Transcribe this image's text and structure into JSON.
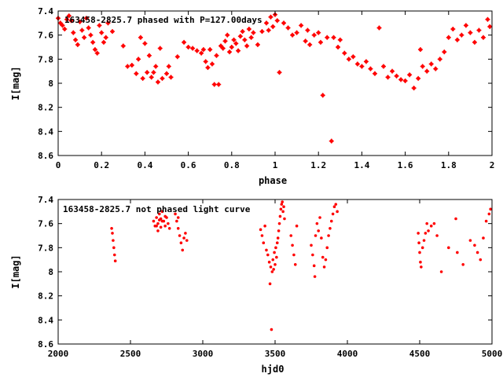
{
  "chart_data": [
    {
      "type": "scatter",
      "title": "163458-2825.7 phased with P=127.00days",
      "xlabel": "phase",
      "ylabel": "I[mag]",
      "xlim": [
        0,
        2
      ],
      "ylim": [
        7.4,
        8.6
      ],
      "y_inverted": true,
      "grid": false,
      "marker_color": "#ff0000",
      "x_ticks": [
        0,
        0.2,
        0.4,
        0.6,
        0.8,
        1,
        1.2,
        1.4,
        1.6,
        1.8,
        2
      ],
      "x_tick_labels": [
        "0",
        "0.2",
        "0.4",
        "0.6",
        "0.8",
        "1",
        "1.2",
        "1.4",
        "1.6",
        "1.8",
        "2"
      ],
      "y_ticks": [
        7.4,
        7.6,
        7.8,
        8,
        8.2,
        8.4,
        8.6
      ],
      "y_tick_labels": [
        "7.4",
        "7.6",
        "7.8",
        "8",
        "8.2",
        "8.4",
        "8.6"
      ],
      "points": [
        [
          0.0,
          7.46
        ],
        [
          0.01,
          7.5
        ],
        [
          0.02,
          7.52
        ],
        [
          0.03,
          7.55
        ],
        [
          0.04,
          7.47
        ],
        [
          0.05,
          7.44
        ],
        [
          0.06,
          7.48
        ],
        [
          0.07,
          7.58
        ],
        [
          0.08,
          7.64
        ],
        [
          0.09,
          7.68
        ],
        [
          0.1,
          7.49
        ],
        [
          0.11,
          7.56
        ],
        [
          0.12,
          7.62
        ],
        [
          0.13,
          7.46
        ],
        [
          0.14,
          7.54
        ],
        [
          0.15,
          7.6
        ],
        [
          0.16,
          7.66
        ],
        [
          0.17,
          7.72
        ],
        [
          0.18,
          7.75
        ],
        [
          0.19,
          7.52
        ],
        [
          0.2,
          7.58
        ],
        [
          0.21,
          7.66
        ],
        [
          0.22,
          7.62
        ],
        [
          0.23,
          7.5
        ],
        [
          0.25,
          7.57
        ],
        [
          0.3,
          7.69
        ],
        [
          0.32,
          7.86
        ],
        [
          0.34,
          7.85
        ],
        [
          0.36,
          7.92
        ],
        [
          0.37,
          7.8
        ],
        [
          0.38,
          7.62
        ],
        [
          0.39,
          7.96
        ],
        [
          0.4,
          7.67
        ],
        [
          0.41,
          7.91
        ],
        [
          0.42,
          7.77
        ],
        [
          0.43,
          7.95
        ],
        [
          0.44,
          7.91
        ],
        [
          0.45,
          7.86
        ],
        [
          0.46,
          7.99
        ],
        [
          0.47,
          7.71
        ],
        [
          0.48,
          7.96
        ],
        [
          0.5,
          7.92
        ],
        [
          0.51,
          7.86
        ],
        [
          0.52,
          7.95
        ],
        [
          0.55,
          7.78
        ],
        [
          0.58,
          7.66
        ],
        [
          0.6,
          7.7
        ],
        [
          0.62,
          7.71
        ],
        [
          0.64,
          7.73
        ],
        [
          0.66,
          7.75
        ],
        [
          0.67,
          7.72
        ],
        [
          0.68,
          7.82
        ],
        [
          0.69,
          7.87
        ],
        [
          0.7,
          7.72
        ],
        [
          0.71,
          7.84
        ],
        [
          0.72,
          8.01
        ],
        [
          0.73,
          7.77
        ],
        [
          0.74,
          8.01
        ],
        [
          0.75,
          7.69
        ],
        [
          0.76,
          7.71
        ],
        [
          0.77,
          7.65
        ],
        [
          0.78,
          7.6
        ],
        [
          0.79,
          7.74
        ],
        [
          0.8,
          7.7
        ],
        [
          0.81,
          7.64
        ],
        [
          0.82,
          7.67
        ],
        [
          0.83,
          7.73
        ],
        [
          0.84,
          7.61
        ],
        [
          0.85,
          7.57
        ],
        [
          0.86,
          7.64
        ],
        [
          0.87,
          7.69
        ],
        [
          0.88,
          7.55
        ],
        [
          0.89,
          7.62
        ],
        [
          0.9,
          7.58
        ],
        [
          0.92,
          7.68
        ],
        [
          0.94,
          7.57
        ],
        [
          0.96,
          7.5
        ],
        [
          0.97,
          7.56
        ],
        [
          0.98,
          7.45
        ],
        [
          0.99,
          7.53
        ],
        [
          1.0,
          7.43
        ],
        [
          1.01,
          7.48
        ],
        [
          1.02,
          7.91
        ],
        [
          1.04,
          7.5
        ],
        [
          1.06,
          7.54
        ],
        [
          1.08,
          7.6
        ],
        [
          1.1,
          7.58
        ],
        [
          1.12,
          7.52
        ],
        [
          1.14,
          7.65
        ],
        [
          1.15,
          7.56
        ],
        [
          1.16,
          7.68
        ],
        [
          1.18,
          7.6
        ],
        [
          1.2,
          7.58
        ],
        [
          1.21,
          7.66
        ],
        [
          1.22,
          8.1
        ],
        [
          1.24,
          7.62
        ],
        [
          1.26,
          8.48
        ],
        [
          1.27,
          7.62
        ],
        [
          1.29,
          7.7
        ],
        [
          1.3,
          7.64
        ],
        [
          1.32,
          7.75
        ],
        [
          1.34,
          7.8
        ],
        [
          1.36,
          7.78
        ],
        [
          1.38,
          7.84
        ],
        [
          1.4,
          7.86
        ],
        [
          1.42,
          7.82
        ],
        [
          1.44,
          7.88
        ],
        [
          1.46,
          7.92
        ],
        [
          1.48,
          7.54
        ],
        [
          1.5,
          7.86
        ],
        [
          1.52,
          7.95
        ],
        [
          1.54,
          7.9
        ],
        [
          1.56,
          7.94
        ],
        [
          1.58,
          7.97
        ],
        [
          1.6,
          7.98
        ],
        [
          1.62,
          7.93
        ],
        [
          1.64,
          8.04
        ],
        [
          1.66,
          7.96
        ],
        [
          1.67,
          7.72
        ],
        [
          1.68,
          7.86
        ],
        [
          1.7,
          7.9
        ],
        [
          1.72,
          7.84
        ],
        [
          1.74,
          7.88
        ],
        [
          1.76,
          7.8
        ],
        [
          1.78,
          7.74
        ],
        [
          1.8,
          7.62
        ],
        [
          1.82,
          7.55
        ],
        [
          1.84,
          7.64
        ],
        [
          1.86,
          7.6
        ],
        [
          1.88,
          7.52
        ],
        [
          1.9,
          7.58
        ],
        [
          1.92,
          7.66
        ],
        [
          1.94,
          7.56
        ],
        [
          1.96,
          7.62
        ],
        [
          1.98,
          7.47
        ],
        [
          1.99,
          7.53
        ]
      ]
    },
    {
      "type": "scatter",
      "title": "163458-2825.7 not phased light curve",
      "xlabel": "hjd0",
      "ylabel": "I[mag]",
      "xlim": [
        2000,
        5000
      ],
      "ylim": [
        7.4,
        8.6
      ],
      "y_inverted": true,
      "grid": false,
      "marker_color": "#ff0000",
      "x_ticks": [
        2000,
        2500,
        3000,
        3500,
        4000,
        4500,
        5000
      ],
      "x_tick_labels": [
        "2000",
        "2500",
        "3000",
        "3500",
        "4000",
        "4500",
        "5000"
      ],
      "y_ticks": [
        7.4,
        7.6,
        7.8,
        8,
        8.2,
        8.4,
        8.6
      ],
      "y_tick_labels": [
        "7.4",
        "7.6",
        "7.8",
        "8",
        "8.2",
        "8.4",
        "8.6"
      ],
      "points": [
        [
          2370,
          7.64
        ],
        [
          2375,
          7.68
        ],
        [
          2380,
          7.74
        ],
        [
          2385,
          7.8
        ],
        [
          2390,
          7.86
        ],
        [
          2395,
          7.91
        ],
        [
          2660,
          7.58
        ],
        [
          2670,
          7.62
        ],
        [
          2680,
          7.55
        ],
        [
          2690,
          7.6
        ],
        [
          2700,
          7.52
        ],
        [
          2710,
          7.56
        ],
        [
          2720,
          7.5
        ],
        [
          2730,
          7.58
        ],
        [
          2740,
          7.62
        ],
        [
          2750,
          7.55
        ],
        [
          2760,
          7.6
        ],
        [
          2770,
          7.64
        ],
        [
          2690,
          7.66
        ],
        [
          2710,
          7.63
        ],
        [
          2680,
          7.62
        ],
        [
          2720,
          7.58
        ],
        [
          2740,
          7.54
        ],
        [
          2700,
          7.57
        ],
        [
          2810,
          7.52
        ],
        [
          2820,
          7.58
        ],
        [
          2830,
          7.64
        ],
        [
          2840,
          7.7
        ],
        [
          2850,
          7.76
        ],
        [
          2860,
          7.82
        ],
        [
          2870,
          7.72
        ],
        [
          2880,
          7.68
        ],
        [
          2890,
          7.74
        ],
        [
          2830,
          7.55
        ],
        [
          3400,
          7.65
        ],
        [
          3410,
          7.7
        ],
        [
          3420,
          7.76
        ],
        [
          3430,
          7.62
        ],
        [
          3440,
          7.82
        ],
        [
          3450,
          7.86
        ],
        [
          3460,
          7.92
        ],
        [
          3465,
          8.1
        ],
        [
          3470,
          7.96
        ],
        [
          3475,
          8.48
        ],
        [
          3480,
          8.0
        ],
        [
          3485,
          7.9
        ],
        [
          3490,
          7.98
        ],
        [
          3495,
          7.84
        ],
        [
          3500,
          7.94
        ],
        [
          3505,
          7.8
        ],
        [
          3510,
          7.88
        ],
        [
          3515,
          7.76
        ],
        [
          3520,
          7.72
        ],
        [
          3525,
          7.66
        ],
        [
          3530,
          7.6
        ],
        [
          3535,
          7.54
        ],
        [
          3540,
          7.48
        ],
        [
          3545,
          7.44
        ],
        [
          3550,
          7.42
        ],
        [
          3555,
          7.5
        ],
        [
          3560,
          7.46
        ],
        [
          3565,
          7.56
        ],
        [
          3610,
          7.7
        ],
        [
          3620,
          7.78
        ],
        [
          3630,
          7.86
        ],
        [
          3640,
          7.94
        ],
        [
          3650,
          7.62
        ],
        [
          3750,
          7.78
        ],
        [
          3760,
          7.86
        ],
        [
          3770,
          7.95
        ],
        [
          3775,
          8.04
        ],
        [
          3780,
          7.7
        ],
        [
          3790,
          7.6
        ],
        [
          3800,
          7.66
        ],
        [
          3810,
          7.55
        ],
        [
          3820,
          7.72
        ],
        [
          3830,
          7.88
        ],
        [
          3840,
          7.96
        ],
        [
          3850,
          7.9
        ],
        [
          3860,
          7.8
        ],
        [
          3870,
          7.7
        ],
        [
          3880,
          7.64
        ],
        [
          3890,
          7.58
        ],
        [
          3900,
          7.52
        ],
        [
          3910,
          7.46
        ],
        [
          3920,
          7.44
        ],
        [
          3930,
          7.5
        ],
        [
          4490,
          7.68
        ],
        [
          4495,
          7.76
        ],
        [
          4500,
          7.84
        ],
        [
          4505,
          7.92
        ],
        [
          4510,
          7.96
        ],
        [
          4520,
          7.8
        ],
        [
          4530,
          7.74
        ],
        [
          4540,
          7.68
        ],
        [
          4550,
          7.6
        ],
        [
          4560,
          7.66
        ],
        [
          4580,
          7.62
        ],
        [
          4600,
          7.6
        ],
        [
          4620,
          7.7
        ],
        [
          4650,
          8.0
        ],
        [
          4700,
          7.8
        ],
        [
          4750,
          7.56
        ],
        [
          4760,
          7.84
        ],
        [
          4800,
          7.94
        ],
        [
          4850,
          7.74
        ],
        [
          4880,
          7.78
        ],
        [
          4900,
          7.84
        ],
        [
          4920,
          7.9
        ],
        [
          4940,
          7.72
        ],
        [
          4960,
          7.58
        ],
        [
          4980,
          7.52
        ],
        [
          4990,
          7.48
        ]
      ]
    }
  ]
}
